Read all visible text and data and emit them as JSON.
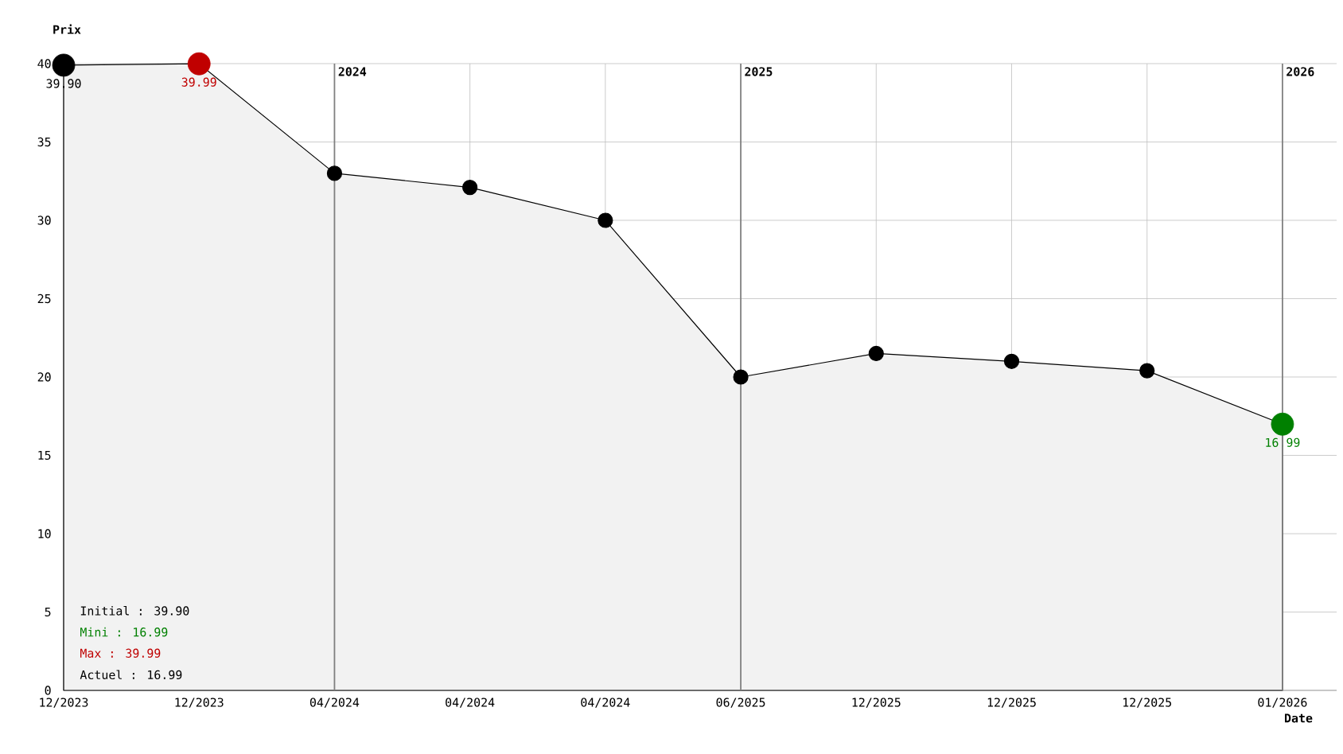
{
  "chart_data": {
    "type": "area",
    "ylabel": "Prix",
    "xlabel": "Date",
    "categories": [
      "12/2023",
      "12/2023",
      "04/2024",
      "04/2024",
      "04/2024",
      "06/2025",
      "12/2025",
      "12/2025",
      "12/2025",
      "01/2026"
    ],
    "series": [
      {
        "color": "#000000",
        "values": [
          39.9,
          39.99,
          33.0,
          32.1,
          30.0,
          20.0,
          21.5,
          21.0,
          20.4,
          16.99
        ],
        "colors": [
          "#000000",
          "#c00000",
          "#000000",
          "#000000",
          "#000000",
          "#000000",
          "#000000",
          "#000000",
          "#000000",
          "#008000"
        ],
        "value_labels": [
          "39.90",
          "39.99",
          null,
          null,
          null,
          null,
          null,
          null,
          null,
          "16.99"
        ]
      }
    ],
    "ylim": [
      0,
      40
    ],
    "yticks": [
      0,
      5,
      10,
      15,
      20,
      25,
      30,
      35,
      40
    ],
    "grid": true,
    "marker": "circle",
    "annotations": [
      "2024",
      "2025",
      "2026",
      "Initial : 39.90",
      "Mini : 16.99",
      "Max : 39.99",
      "Actuel : 16.99"
    ]
  }
}
